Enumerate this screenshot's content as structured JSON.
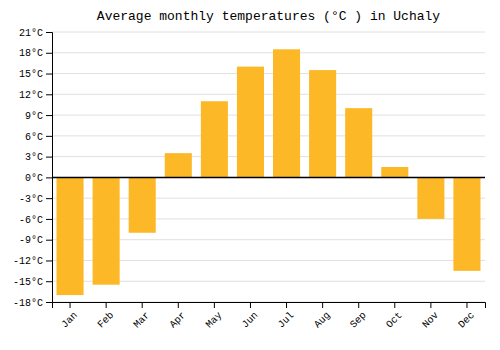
{
  "chart_data": {
    "type": "bar",
    "title": "Average monthly temperatures (°C ) in Uchaly",
    "categories": [
      "Jan",
      "Feb",
      "Mar",
      "Apr",
      "May",
      "Jun",
      "Jul",
      "Aug",
      "Sep",
      "Oct",
      "Nov",
      "Dec"
    ],
    "values": [
      -17,
      -15.5,
      -8,
      3.5,
      11,
      16,
      18.5,
      15.5,
      10,
      1.5,
      -6,
      -13.5
    ],
    "color": "#FDB827",
    "ylim": [
      -18,
      21
    ],
    "yticks": [
      {
        "value": -18,
        "label": "-18°C"
      },
      {
        "value": -15,
        "label": "-15°C"
      },
      {
        "value": -12,
        "label": "-12°C"
      },
      {
        "value": -9,
        "label": "-9°C"
      },
      {
        "value": -6,
        "label": "-6°C"
      },
      {
        "value": -3,
        "label": "-3°C"
      },
      {
        "value": 0,
        "label": "0°C"
      },
      {
        "value": 3,
        "label": "3°C"
      },
      {
        "value": 6,
        "label": "6°C"
      },
      {
        "value": 9,
        "label": "9°C"
      },
      {
        "value": 12,
        "label": "12°C"
      },
      {
        "value": 15,
        "label": "15°C"
      },
      {
        "value": 18,
        "label": "18°C"
      },
      {
        "value": 21,
        "label": "21°C"
      }
    ],
    "grid": true
  }
}
